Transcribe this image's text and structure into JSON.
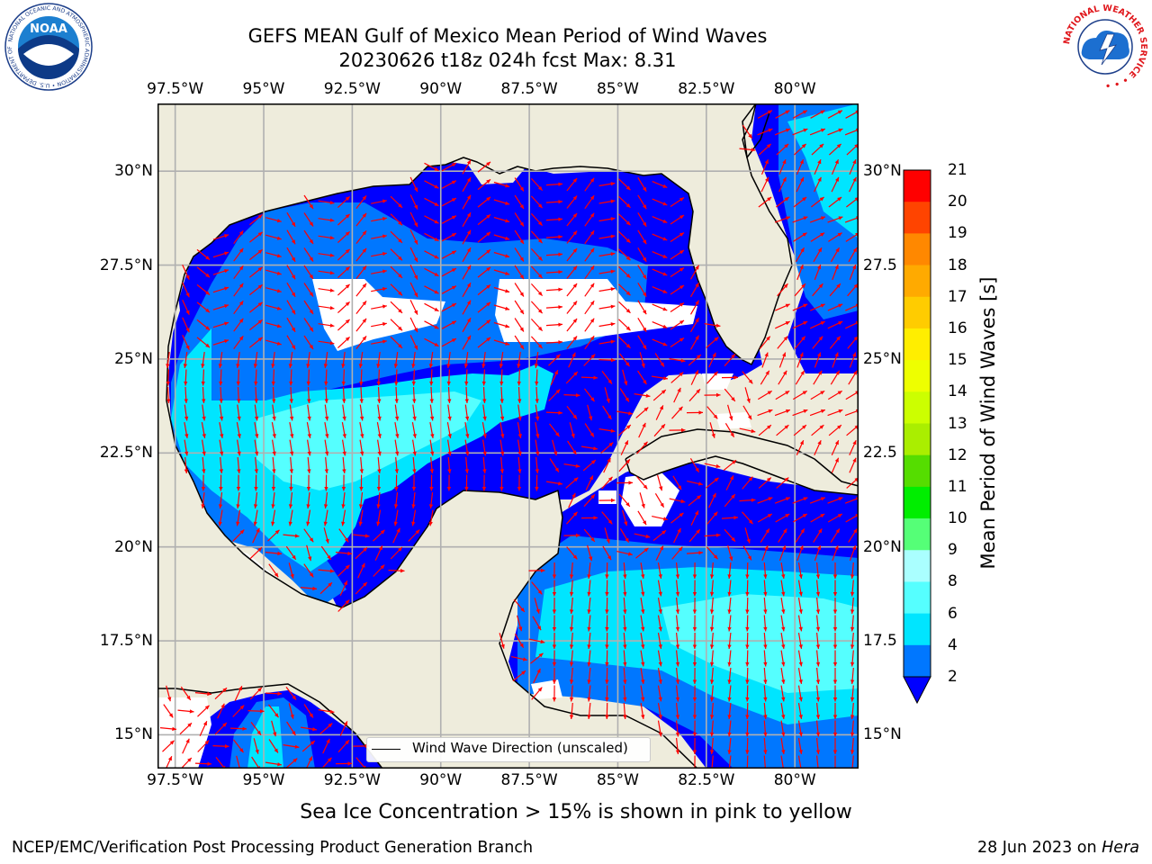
{
  "title": {
    "line1": "GEFS MEAN Gulf of Mexico Mean Period of Wind Waves",
    "line2": "20230626 t18z 024h fcst   Max: 8.31"
  },
  "map": {
    "lon_labels": [
      "97.5°W",
      "95°W",
      "92.5°W",
      "90°W",
      "87.5°W",
      "85°W",
      "82.5°W",
      "80°W"
    ],
    "lat_labels_left": [
      "30°N",
      "27.5°N",
      "25°N",
      "22.5°N",
      "20°N",
      "17.5°N",
      "15°N"
    ],
    "lat_labels_right": [
      "30°N",
      "27.5",
      "25°N",
      "22.5",
      "20°N",
      "17.5",
      "15°N"
    ],
    "lon_range": [
      -98,
      -78.2
    ],
    "lat_range": [
      14.1,
      31.8
    ],
    "gridlines": true,
    "colors": {
      "land": "#eeecdc",
      "ocean_missing": "#ffffff",
      "arrow": "#ff0000",
      "grid": "#b0b0b0",
      "coast": "#000000"
    },
    "legend": {
      "label": "Wind Wave Direction (unscaled)",
      "placement": "bottom-center"
    }
  },
  "colorbar": {
    "label": "Mean Period of Wind Waves [s]",
    "ticks": [
      "2",
      "4",
      "6",
      "8",
      "9",
      "10",
      "11",
      "12",
      "13",
      "14",
      "15",
      "16",
      "17",
      "18",
      "19",
      "20",
      "21"
    ],
    "colors": [
      "#0000ff",
      "#0077ff",
      "#00e5ff",
      "#55ffff",
      "#aaffff",
      "#55ff77",
      "#00ee00",
      "#55dd00",
      "#aaee00",
      "#ccff00",
      "#eeff00",
      "#ffee00",
      "#ffcc00",
      "#ffaa00",
      "#ff8800",
      "#ff4400",
      "#ff0000"
    ],
    "extend": "min"
  },
  "caption": "Sea Ice Concentration > 15% is shown in pink to yellow",
  "footer": {
    "left": "NCEP/EMC/Verification Post Processing Product Generation Branch",
    "right_date": "28 Jun 2023 on ",
    "right_host": "Hera"
  },
  "logos": {
    "noaa_text": "NOAA",
    "noaa_ring": "NATIONAL OCEANIC AND ATMOSPHERIC ADMINISTRATION • U.S. DEPARTMENT OF COMMERCE •",
    "nws_ring": "NATIONAL WEATHER SERVICE • • •"
  }
}
